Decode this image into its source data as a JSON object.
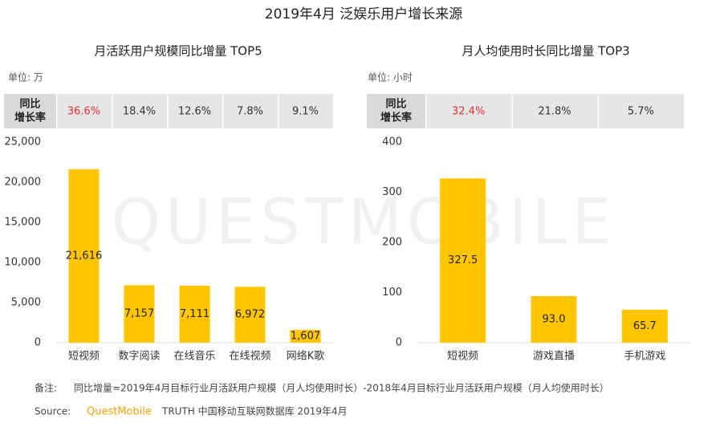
{
  "title": "2019年4月 泛娱乐用户增长来源",
  "watermark": "QUESTMOBILE",
  "chart_data": [
    {
      "type": "bar",
      "title": "月活跃用户规模同比增量 TOP5",
      "unit": "单位: 万",
      "categories": [
        "短视频",
        "数字阅读",
        "在线音乐",
        "在线视频",
        "网络K歌"
      ],
      "values": [
        21616,
        7157,
        7111,
        6972,
        1607
      ],
      "value_labels": [
        "21,616",
        "7,157",
        "7,111",
        "6,972",
        "1,607"
      ],
      "color": "#ffc600",
      "ylim": [
        0,
        25000
      ],
      "yticks": [
        0,
        {
          "value": 5000,
          "label": "5,000"
        },
        {
          "value": 10000,
          "label": "10,000"
        },
        {
          "value": 15000,
          "label": "15,000"
        },
        {
          "value": 20000,
          "label": "20,000"
        },
        {
          "value": 25000,
          "label": "25,000"
        }
      ],
      "growth": {
        "label": [
          "同比",
          "增长率"
        ],
        "values": [
          36.6,
          18.4,
          12.6,
          7.8,
          9.1
        ],
        "value_labels": [
          "36.6%",
          "18.4%",
          "12.6%",
          "7.8%",
          "9.1%"
        ],
        "highlight_color": "#e8312f"
      }
    },
    {
      "type": "bar",
      "title": "月人均使用时长同比增量 TOP3",
      "unit": "单位: 小时",
      "categories": [
        "短视频",
        "游戏直播",
        "手机游戏"
      ],
      "values": [
        327.5,
        93,
        65.7
      ],
      "value_labels": [
        "327.5",
        "93.0",
        "65.7"
      ],
      "color": "#ffc600",
      "ylim": [
        0,
        400
      ],
      "yticks": [
        0,
        100,
        200,
        300,
        400
      ],
      "growth": {
        "label": [
          "同比",
          "增长率"
        ],
        "values": [
          32.4,
          21.8,
          5.7
        ],
        "value_labels": [
          "32.4%",
          "21.8%",
          "5.7%"
        ],
        "highlight_color": "#e8312f"
      }
    }
  ],
  "note": {
    "label": "备注:",
    "text": "同比增量=2019年4月目标行业月活跃用户规模（月人均使用时长）-2018年4月目标行业月活跃用户规模（月人均使用时长）"
  },
  "source": {
    "label": "Source:",
    "brand": "QuestMobile",
    "text": "TRUTH 中国移动互联网数据库 2019年4月"
  }
}
